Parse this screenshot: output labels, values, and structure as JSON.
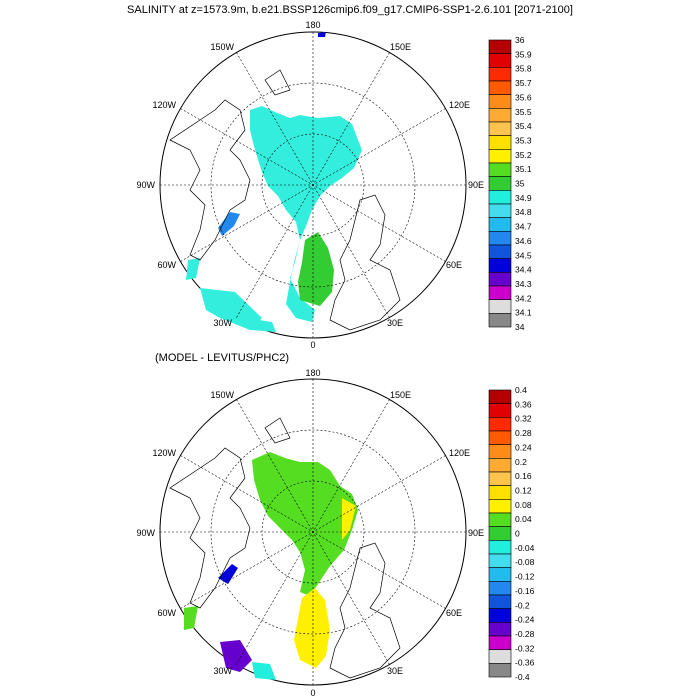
{
  "panel1": {
    "title": "SALINITY at z=1573.9m, b.e21.BSSP126cmip6.f09_g17.CMIP6-SSP1-2.6.101 [2071-2100]",
    "colorbar_labels": [
      "36",
      "35.9",
      "35.8",
      "35.7",
      "35.6",
      "35.5",
      "35.4",
      "35.3",
      "35.2",
      "35.1",
      "35",
      "34.9",
      "34.8",
      "34.7",
      "34.6",
      "34.5",
      "34.4",
      "34.3",
      "34.2",
      "34.1",
      "34"
    ]
  },
  "panel2": {
    "title": "(MODEL - LEVITUS/PHC2)",
    "colorbar_labels": [
      "0.4",
      "0.36",
      "0.32",
      "0.28",
      "0.24",
      "0.2",
      "0.16",
      "0.12",
      "0.08",
      "0.04",
      "0",
      "-0.04",
      "-0.08",
      "-0.12",
      "-0.16",
      "-0.2",
      "-0.24",
      "-0.28",
      "-0.32",
      "-0.36",
      "-0.4"
    ]
  },
  "longitude_labels": [
    "180",
    "150E",
    "120E",
    "90E",
    "60E",
    "30E",
    "0",
    "30W",
    "60W",
    "90W",
    "120W",
    "150W"
  ],
  "colorbar_colors": [
    "#b40000",
    "#e00000",
    "#ff2a00",
    "#ff5a00",
    "#ff8c1a",
    "#ffaa33",
    "#ffc44d",
    "#ffe000",
    "#fff000",
    "#55dd22",
    "#33cc33",
    "#22eedd",
    "#44ddee",
    "#22bbee",
    "#2288ee",
    "#1155dd",
    "#0000dd",
    "#6600cc",
    "#cc00cc",
    "#dddddd",
    "#888888"
  ]
}
